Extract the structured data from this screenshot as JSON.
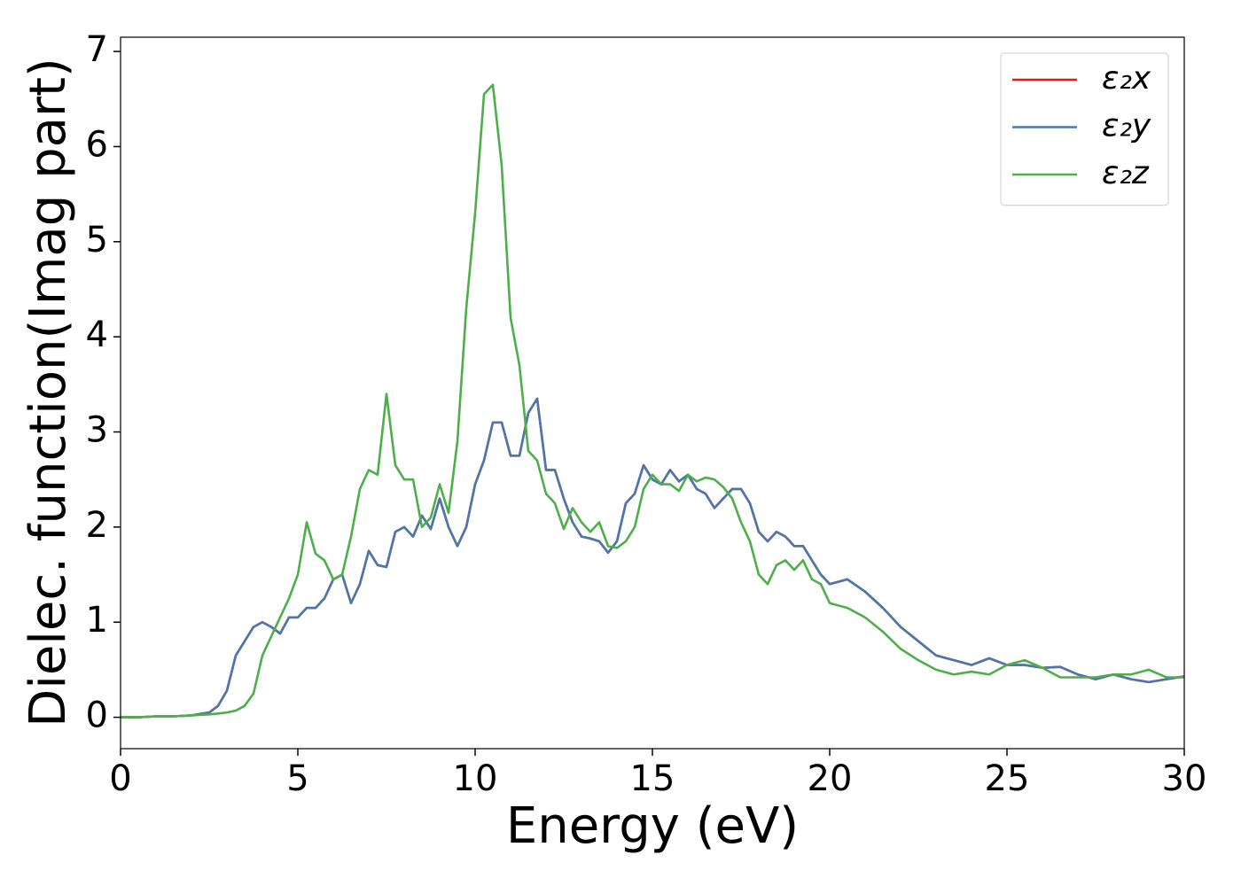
{
  "chart_data": {
    "type": "line",
    "xlabel": "Energy (eV)",
    "ylabel": "Dielec. function(Imag part)",
    "x": [
      0,
      0.5,
      1,
      1.5,
      2,
      2.5,
      2.75,
      3,
      3.25,
      3.5,
      3.75,
      4,
      4.25,
      4.5,
      4.75,
      5,
      5.25,
      5.5,
      5.75,
      6,
      6.25,
      6.5,
      6.75,
      7,
      7.25,
      7.5,
      7.75,
      8,
      8.25,
      8.5,
      8.75,
      9,
      9.25,
      9.5,
      9.75,
      10,
      10.25,
      10.5,
      10.75,
      11,
      11.25,
      11.5,
      11.75,
      12,
      12.25,
      12.5,
      12.75,
      13,
      13.25,
      13.5,
      13.75,
      14,
      14.25,
      14.5,
      14.75,
      15,
      15.25,
      15.5,
      15.75,
      16,
      16.25,
      16.5,
      16.75,
      17,
      17.25,
      17.5,
      17.75,
      18,
      18.25,
      18.5,
      18.75,
      19,
      19.25,
      19.5,
      19.75,
      20,
      20.5,
      21,
      21.5,
      22,
      22.5,
      23,
      23.5,
      24,
      24.5,
      25,
      25.5,
      26,
      26.5,
      27,
      27.5,
      28,
      28.5,
      29,
      29.5,
      30
    ],
    "series": [
      {
        "name": "ε₂x",
        "color": "#e41a1c",
        "values": [
          0,
          0,
          0.01,
          0.01,
          0.02,
          0.05,
          0.12,
          0.28,
          0.65,
          0.8,
          0.95,
          1.0,
          0.95,
          0.88,
          1.05,
          1.05,
          1.15,
          1.15,
          1.25,
          1.45,
          1.5,
          1.2,
          1.4,
          1.75,
          1.6,
          1.58,
          1.95,
          2.0,
          1.9,
          2.12,
          1.98,
          2.3,
          2.0,
          1.8,
          2.0,
          2.45,
          2.7,
          3.1,
          3.1,
          2.75,
          2.75,
          3.2,
          3.35,
          2.6,
          2.6,
          2.3,
          2.05,
          1.9,
          1.88,
          1.85,
          1.73,
          1.85,
          2.25,
          2.35,
          2.65,
          2.5,
          2.45,
          2.6,
          2.48,
          2.55,
          2.4,
          2.35,
          2.2,
          2.3,
          2.4,
          2.4,
          2.25,
          1.95,
          1.85,
          1.95,
          1.9,
          1.8,
          1.8,
          1.65,
          1.5,
          1.4,
          1.45,
          1.32,
          1.15,
          0.95,
          0.8,
          0.65,
          0.6,
          0.55,
          0.62,
          0.55,
          0.55,
          0.52,
          0.53,
          0.45,
          0.4,
          0.45,
          0.4,
          0.37,
          0.4,
          0.43
        ]
      },
      {
        "name": "ε₂y",
        "color": "#4a78ad",
        "values": [
          0,
          0,
          0.01,
          0.01,
          0.02,
          0.05,
          0.12,
          0.28,
          0.65,
          0.8,
          0.95,
          1.0,
          0.95,
          0.88,
          1.05,
          1.05,
          1.15,
          1.15,
          1.25,
          1.45,
          1.5,
          1.2,
          1.4,
          1.75,
          1.6,
          1.58,
          1.95,
          2.0,
          1.9,
          2.12,
          1.98,
          2.3,
          2.0,
          1.8,
          2.0,
          2.45,
          2.7,
          3.1,
          3.1,
          2.75,
          2.75,
          3.2,
          3.35,
          2.6,
          2.6,
          2.3,
          2.05,
          1.9,
          1.88,
          1.85,
          1.73,
          1.85,
          2.25,
          2.35,
          2.65,
          2.5,
          2.45,
          2.6,
          2.48,
          2.55,
          2.4,
          2.35,
          2.2,
          2.3,
          2.4,
          2.4,
          2.25,
          1.95,
          1.85,
          1.95,
          1.9,
          1.8,
          1.8,
          1.65,
          1.5,
          1.4,
          1.45,
          1.32,
          1.15,
          0.95,
          0.8,
          0.65,
          0.6,
          0.55,
          0.62,
          0.55,
          0.55,
          0.52,
          0.53,
          0.45,
          0.4,
          0.45,
          0.4,
          0.37,
          0.4,
          0.43
        ]
      },
      {
        "name": "ε₂z",
        "color": "#4daf4a",
        "values": [
          0,
          0,
          0.01,
          0.01,
          0.02,
          0.03,
          0.04,
          0.05,
          0.07,
          0.12,
          0.25,
          0.65,
          0.85,
          1.05,
          1.25,
          1.5,
          2.05,
          1.72,
          1.65,
          1.45,
          1.5,
          1.9,
          2.4,
          2.6,
          2.55,
          3.4,
          2.65,
          2.5,
          2.5,
          2.0,
          2.1,
          2.45,
          2.15,
          2.9,
          4.3,
          5.3,
          6.55,
          6.65,
          5.8,
          4.2,
          3.7,
          2.8,
          2.7,
          2.35,
          2.25,
          1.98,
          2.2,
          2.05,
          1.95,
          2.05,
          1.8,
          1.78,
          1.85,
          2.0,
          2.4,
          2.55,
          2.45,
          2.45,
          2.38,
          2.55,
          2.48,
          2.52,
          2.5,
          2.42,
          2.3,
          2.05,
          1.85,
          1.5,
          1.4,
          1.6,
          1.65,
          1.55,
          1.65,
          1.45,
          1.4,
          1.2,
          1.15,
          1.05,
          0.9,
          0.72,
          0.6,
          0.5,
          0.45,
          0.48,
          0.45,
          0.55,
          0.6,
          0.52,
          0.42,
          0.42,
          0.42,
          0.45,
          0.45,
          0.5,
          0.42,
          0.42
        ]
      }
    ],
    "xlim": [
      0,
      30
    ],
    "xticks": [
      0,
      5,
      10,
      15,
      20,
      25,
      30
    ],
    "ylim": [
      -0.33,
      7.15
    ],
    "yticks": [
      0,
      1,
      2,
      3,
      4,
      5,
      6,
      7
    ],
    "grid": false,
    "legend": "upper right"
  }
}
